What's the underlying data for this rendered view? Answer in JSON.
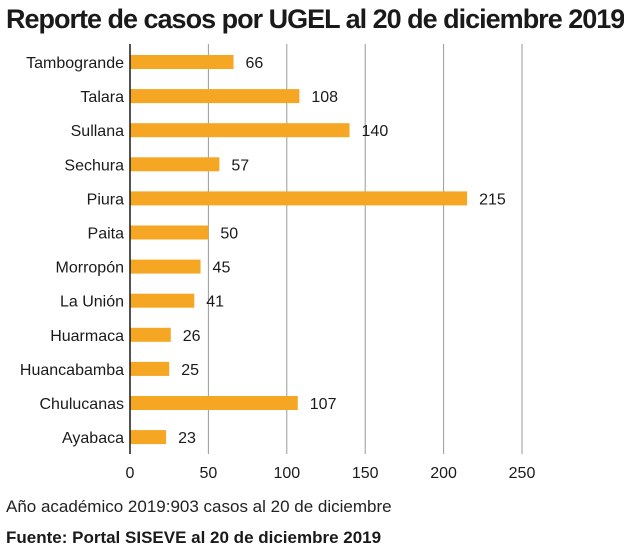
{
  "title": "Reporte de casos por UGEL al 20 de diciembre 2019",
  "note": "Año académico 2019:903 casos al 20 de diciembre",
  "source": "Fuente: Portal SISEVE al 20 de diciembre 2019",
  "colors": {
    "bar": "#f5a623",
    "grid": "#9a9a9a",
    "axis": "#1a1a1a"
  },
  "chart_data": {
    "type": "bar",
    "orientation": "horizontal",
    "title": "Reporte de casos por UGEL al 20 de diciembre 2019",
    "categories": [
      "Tambogrande",
      "Talara",
      "Sullana",
      "Sechura",
      "Piura",
      "Paita",
      "Morropón",
      "La Unión",
      "Huarmaca",
      "Huancabamba",
      "Chulucanas",
      "Ayabaca"
    ],
    "values": [
      66,
      108,
      140,
      57,
      215,
      50,
      45,
      41,
      26,
      25,
      107,
      23
    ],
    "xlim": [
      0,
      250
    ],
    "xticks": [
      0,
      50,
      100,
      150,
      200,
      250
    ],
    "grid": "vertical",
    "data_labels": true
  }
}
